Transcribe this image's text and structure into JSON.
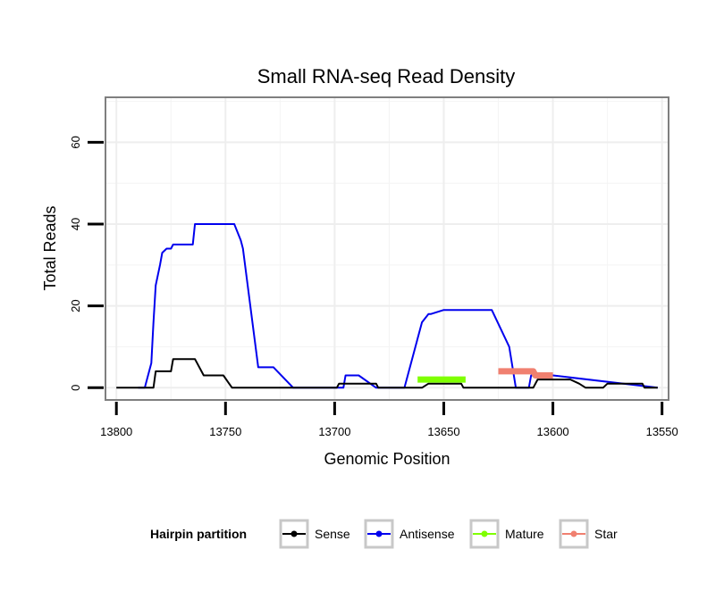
{
  "chart_data": {
    "type": "line",
    "title": "Small RNA-seq Read Density",
    "xlabel": "Genomic Position",
    "ylabel": "Total Reads",
    "xlim": [
      13805,
      13547
    ],
    "ylim": [
      -3,
      71
    ],
    "x_reversed": true,
    "x_ticks": [
      13800,
      13750,
      13700,
      13650,
      13600,
      13550
    ],
    "y_ticks": [
      0,
      20,
      40,
      60
    ],
    "grid": true,
    "legend": {
      "title": "Hairpin partition",
      "position": "bottom",
      "entries": [
        {
          "name": "Sense",
          "color": "#000000"
        },
        {
          "name": "Antisense",
          "color": "#0000ee"
        },
        {
          "name": "Mature",
          "color": "#7fff00"
        },
        {
          "name": "Star",
          "color": "#f08070"
        }
      ]
    },
    "series": [
      {
        "name": "Antisense",
        "color": "#0000ee",
        "x": [
          13790,
          13787,
          13786,
          13784,
          13783,
          13782,
          13780,
          13779,
          13777,
          13775,
          13774,
          13767,
          13765,
          13764,
          13757,
          13756,
          13749,
          13746,
          13743,
          13742,
          13735,
          13729,
          13728,
          13719,
          13718,
          13716,
          13712,
          13710,
          13699,
          13696,
          13695,
          13693,
          13691,
          13689,
          13681,
          13680,
          13670,
          13668,
          13662,
          13660,
          13657,
          13656,
          13650,
          13648,
          13646,
          13642,
          13639,
          13638,
          13633,
          13632,
          13631,
          13630,
          13628,
          13620,
          13617,
          13613,
          13611,
          13610,
          13609,
          13607,
          13604,
          13603,
          13600,
          13552
        ],
        "y": [
          0,
          0,
          2,
          6,
          16,
          25,
          30,
          33,
          34,
          34,
          35,
          35,
          35,
          40,
          40,
          40,
          40,
          40,
          36,
          34,
          5,
          5,
          5,
          0,
          0,
          0,
          0,
          0,
          0,
          0,
          3,
          3,
          3,
          3,
          0,
          0,
          0,
          0,
          12,
          16,
          18,
          18,
          19,
          19,
          19,
          19,
          19,
          19,
          19,
          19,
          19,
          19,
          19,
          10,
          0,
          0,
          0,
          3,
          3,
          3,
          3,
          3,
          3,
          0
        ]
      },
      {
        "name": "Sense",
        "color": "#000000",
        "x": [
          13800,
          13783,
          13782,
          13778,
          13775,
          13774,
          13770,
          13768,
          13765,
          13764,
          13760,
          13752,
          13751,
          13747,
          13746,
          13742,
          13740,
          13739,
          13735,
          13733,
          13732,
          13730,
          13728,
          13726,
          13725,
          13723,
          13720,
          13715,
          13710,
          13707,
          13704,
          13702,
          13699,
          13698,
          13695,
          13693,
          13690,
          13687,
          13685,
          13681,
          13680,
          13677,
          13674,
          13670,
          13667,
          13665,
          13662,
          13660,
          13657,
          13652,
          13642,
          13641,
          13638,
          13633,
          13631,
          13630,
          13624,
          13617,
          13612,
          13609,
          13607,
          13604,
          13603,
          13600,
          13594,
          13592,
          13588,
          13585,
          13582,
          13580,
          13577,
          13575,
          13572,
          13568,
          13566,
          13562,
          13559,
          13558,
          13552
        ],
        "y": [
          0,
          0,
          4,
          4,
          4,
          7,
          7,
          7,
          7,
          7,
          3,
          3,
          3,
          0,
          0,
          0,
          0,
          0,
          0,
          0,
          0,
          0,
          0,
          0,
          0,
          0,
          0,
          0,
          0,
          0,
          0,
          0,
          0,
          1,
          1,
          1,
          1,
          1,
          1,
          1,
          0,
          0,
          0,
          0,
          0,
          0,
          0,
          0,
          1,
          1,
          1,
          0,
          0,
          0,
          0,
          0,
          0,
          0,
          0,
          0,
          2,
          2,
          2,
          2,
          2,
          2,
          1,
          0,
          0,
          0,
          0,
          1,
          1,
          1,
          1,
          1,
          1,
          0,
          0
        ]
      },
      {
        "name": "Mature",
        "color": "#7fff00",
        "x": [
          13662,
          13640
        ],
        "y": [
          2,
          2
        ]
      },
      {
        "name": "Star",
        "color": "#f08070",
        "x": [
          13625,
          13609,
          13608,
          13600
        ],
        "y": [
          4,
          4,
          3,
          3
        ]
      }
    ]
  }
}
